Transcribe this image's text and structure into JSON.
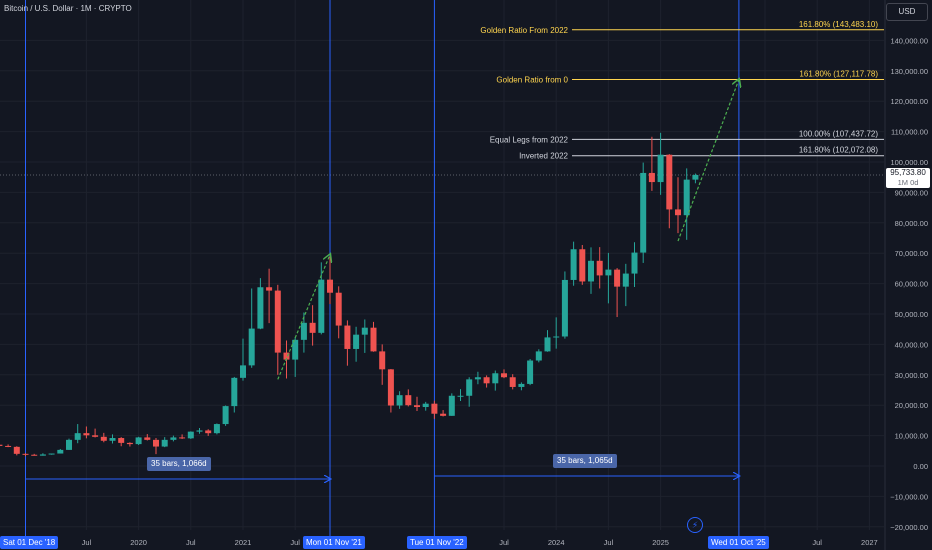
{
  "header": {
    "title": "Bitcoin / U.S. Dollar · 1M · CRYPTO",
    "currency_button": "USD"
  },
  "current_price": {
    "value": "95,733.80",
    "timeframe": "1M 0d",
    "level": 95733.8
  },
  "colors": {
    "up": "#26a69a",
    "down": "#ef5350",
    "background": "#131722",
    "grid": "#1e222d",
    "blue": "#2962ff",
    "golden": "#ffd54f",
    "white": "#d1d4dc",
    "proj": "#4caf50"
  },
  "levels": [
    {
      "name": "Golden Ratio From 2022",
      "ratio": "161.80% (143,483.10)",
      "value": 143483.1,
      "color": "golden"
    },
    {
      "name": "Golden Ratio from 0",
      "ratio": "161.80% (127,117.78)",
      "value": 127117.78,
      "color": "golden"
    },
    {
      "name": "Equal Legs from 2022",
      "ratio": "100.00% (107,437.72)",
      "value": 107437.72,
      "color": "white"
    },
    {
      "name": "Inverted 2022",
      "ratio": "161.80% (102,072.08)",
      "value": 102072.08,
      "color": "white"
    }
  ],
  "measures": [
    {
      "label": "35 bars, 1,066d",
      "from": "2018-12",
      "to": "2021-11"
    },
    {
      "label": "35 bars, 1,065d",
      "from": "2022-11",
      "to": "2025-10"
    }
  ],
  "date_markers": [
    "Sat 01 Dec '18",
    "Mon 01 Nov '21",
    "Tue 01 Nov '22",
    "Wed 01 Oct '25"
  ],
  "chart_data": {
    "type": "candlestick",
    "title": "Bitcoin / U.S. Dollar · 1M · CRYPTO",
    "ylim": [
      -20000,
      150000
    ],
    "y_ticks": [
      -20000,
      -10000,
      0,
      10000,
      20000,
      30000,
      40000,
      50000,
      60000,
      70000,
      80000,
      90000,
      100000,
      110000,
      120000,
      130000,
      140000
    ],
    "y_tick_labels": [
      "−20,000.00",
      "−10,000.00",
      "0.00",
      "10,000.00",
      "20,000.00",
      "30,000.00",
      "40,000.00",
      "50,000.00",
      "60,000.00",
      "70,000.00",
      "80,000.00",
      "90,000.00",
      "100,000.00",
      "110,000.00",
      "120,000.00",
      "130,000.00",
      "140,000.00"
    ],
    "x_ticks": [
      "Jul",
      "2020",
      "Jul",
      "2021",
      "Jul",
      "Jul",
      "2024",
      "Jul",
      "2025",
      "26",
      "Jul",
      "2027"
    ],
    "x_tick_months": [
      "2019-07",
      "2020-01",
      "2020-07",
      "2021-01",
      "2021-07",
      "2023-07",
      "2024-01",
      "2024-07",
      "2025-01",
      "2026-01",
      "2026-07",
      "2027-01"
    ],
    "candles": [
      [
        "2018-08",
        7000,
        7700,
        6000,
        7000
      ],
      [
        "2018-09",
        7000,
        7400,
        6100,
        6600
      ],
      [
        "2018-10",
        6600,
        7100,
        6200,
        6300
      ],
      [
        "2018-11",
        6300,
        6500,
        3500,
        4000
      ],
      [
        "2018-12",
        4000,
        4200,
        3200,
        3700
      ],
      [
        "2019-01",
        3700,
        4000,
        3400,
        3400
      ],
      [
        "2019-02",
        3400,
        4200,
        3400,
        3800
      ],
      [
        "2019-03",
        3800,
        4100,
        3700,
        4100
      ],
      [
        "2019-04",
        4100,
        5600,
        4100,
        5300
      ],
      [
        "2019-05",
        5300,
        9000,
        5300,
        8600
      ],
      [
        "2019-06",
        8600,
        13800,
        7500,
        10800
      ],
      [
        "2019-07",
        10800,
        13000,
        9100,
        10100
      ],
      [
        "2019-08",
        10100,
        12300,
        9400,
        9600
      ],
      [
        "2019-09",
        9600,
        10900,
        7800,
        8300
      ],
      [
        "2019-10",
        8300,
        10400,
        7400,
        9200
      ],
      [
        "2019-11",
        9200,
        9500,
        6500,
        7600
      ],
      [
        "2019-12",
        7600,
        7800,
        6400,
        7200
      ],
      [
        "2020-01",
        7200,
        9600,
        6900,
        9400
      ],
      [
        "2020-02",
        9400,
        10500,
        8400,
        8600
      ],
      [
        "2020-03",
        8600,
        9200,
        3900,
        6400
      ],
      [
        "2020-04",
        6400,
        9500,
        6200,
        8600
      ],
      [
        "2020-05",
        8600,
        10000,
        8100,
        9400
      ],
      [
        "2020-06",
        9400,
        10400,
        8900,
        9100
      ],
      [
        "2020-07",
        9100,
        11400,
        8900,
        11300
      ],
      [
        "2020-08",
        11300,
        12500,
        10600,
        11700
      ],
      [
        "2020-09",
        11700,
        12100,
        9900,
        10800
      ],
      [
        "2020-10",
        10800,
        14000,
        10400,
        13800
      ],
      [
        "2020-11",
        13800,
        19900,
        13200,
        19700
      ],
      [
        "2020-12",
        19700,
        29300,
        17600,
        29000
      ],
      [
        "2021-01",
        29000,
        41900,
        28100,
        33100
      ],
      [
        "2021-02",
        33100,
        58400,
        32300,
        45200
      ],
      [
        "2021-03",
        45200,
        61800,
        45000,
        58800
      ],
      [
        "2021-04",
        58800,
        64900,
        47000,
        57700
      ],
      [
        "2021-05",
        57700,
        59600,
        30000,
        37300
      ],
      [
        "2021-06",
        37300,
        41300,
        28800,
        35000
      ],
      [
        "2021-07",
        35000,
        42400,
        29300,
        41500
      ],
      [
        "2021-08",
        41500,
        50500,
        37300,
        47100
      ],
      [
        "2021-09",
        47100,
        52900,
        39600,
        43800
      ],
      [
        "2021-10",
        43800,
        67000,
        43300,
        61300
      ],
      [
        "2021-11",
        61300,
        69000,
        53300,
        57000
      ],
      [
        "2021-12",
        57000,
        59100,
        42000,
        46200
      ],
      [
        "2022-01",
        46200,
        47900,
        33000,
        38500
      ],
      [
        "2022-02",
        38500,
        45800,
        34300,
        43200
      ],
      [
        "2022-03",
        43200,
        48200,
        37200,
        45500
      ],
      [
        "2022-04",
        45500,
        47400,
        37600,
        37700
      ],
      [
        "2022-05",
        37700,
        40000,
        26700,
        31800
      ],
      [
        "2022-06",
        31800,
        31900,
        17600,
        19900
      ],
      [
        "2022-07",
        19900,
        24600,
        18800,
        23300
      ],
      [
        "2022-08",
        23300,
        25200,
        19600,
        20000
      ],
      [
        "2022-09",
        20000,
        22800,
        18100,
        19400
      ],
      [
        "2022-10",
        19400,
        21100,
        18200,
        20500
      ],
      [
        "2022-11",
        20500,
        21500,
        15500,
        17200
      ],
      [
        "2022-12",
        17200,
        18400,
        16300,
        16500
      ],
      [
        "2023-01",
        16500,
        23900,
        16500,
        23100
      ],
      [
        "2023-02",
        23100,
        25300,
        21400,
        23100
      ],
      [
        "2023-03",
        23100,
        29200,
        19500,
        28500
      ],
      [
        "2023-04",
        28500,
        31000,
        26900,
        29200
      ],
      [
        "2023-05",
        29200,
        29800,
        25800,
        27200
      ],
      [
        "2023-06",
        27200,
        31400,
        24800,
        30500
      ],
      [
        "2023-07",
        30500,
        31800,
        28900,
        29200
      ],
      [
        "2023-08",
        29200,
        30200,
        25200,
        26000
      ],
      [
        "2023-09",
        26000,
        27500,
        24900,
        27000
      ],
      [
        "2023-10",
        27000,
        35200,
        26600,
        34700
      ],
      [
        "2023-11",
        34700,
        38400,
        34100,
        37700
      ],
      [
        "2023-12",
        37700,
        44700,
        37600,
        42300
      ],
      [
        "2024-01",
        42300,
        48900,
        38600,
        42600
      ],
      [
        "2024-02",
        42600,
        64000,
        41900,
        61200
      ],
      [
        "2024-03",
        61200,
        73800,
        59300,
        71300
      ],
      [
        "2024-04",
        71300,
        72700,
        59600,
        60700
      ],
      [
        "2024-05",
        60700,
        71900,
        56600,
        67500
      ],
      [
        "2024-06",
        67500,
        72000,
        58400,
        62700
      ],
      [
        "2024-07",
        62700,
        70100,
        53500,
        64600
      ],
      [
        "2024-08",
        64600,
        65100,
        49000,
        59000
      ],
      [
        "2024-09",
        59000,
        66500,
        52600,
        63300
      ],
      [
        "2024-10",
        63300,
        73600,
        58900,
        70200
      ],
      [
        "2024-11",
        70200,
        99800,
        66800,
        96400
      ],
      [
        "2024-12",
        96400,
        108300,
        90500,
        93400
      ],
      [
        "2025-01",
        93400,
        109600,
        89200,
        102400
      ],
      [
        "2025-02",
        102400,
        102600,
        78200,
        84400
      ],
      [
        "2025-03",
        84400,
        95000,
        76600,
        82500
      ],
      [
        "2025-04",
        82500,
        97900,
        74400,
        94200
      ],
      [
        "2025-05",
        94200,
        96200,
        93000,
        95733.8
      ]
    ],
    "projections": [
      {
        "from": [
          "2021-05",
          28500
        ],
        "to": [
          "2021-11",
          69500
        ]
      },
      {
        "from": [
          "2025-03",
          74000
        ],
        "to": [
          "2025-10",
          127117.78
        ]
      }
    ]
  }
}
